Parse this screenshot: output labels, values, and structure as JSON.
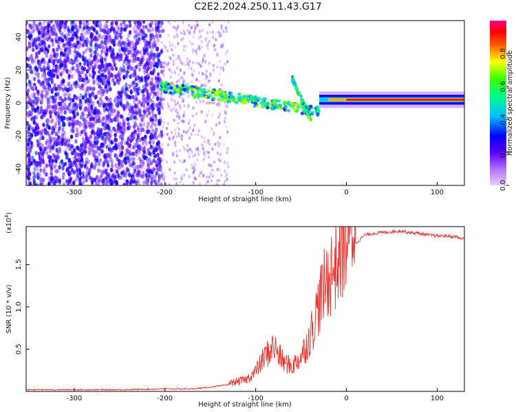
{
  "title": "C2E2.2024.250.11.43.G17",
  "chart_data": [
    {
      "type": "heatmap",
      "xlabel": "Height of straight line (km)",
      "ylabel": "Frequency (Hz)",
      "xlim": [
        -353,
        130
      ],
      "ylim": [
        -50,
        50
      ],
      "xticks": [
        "-300",
        "-200",
        "-100",
        "0",
        "100"
      ],
      "yticks": [
        "-40",
        "-20",
        "0",
        "20",
        "40"
      ],
      "colorbar": {
        "label": "Normalized spectral amplitude",
        "range": [
          0,
          1
        ],
        "ticks": [
          "0.0",
          "0.2",
          "0.4",
          "0.6",
          "0.8"
        ],
        "colormap": [
          "#e6c8f0",
          "#7a00ff",
          "#0000ff",
          "#00d8ff",
          "#00ff60",
          "#ffff00",
          "#ff2000",
          "#ff0080"
        ]
      },
      "bands": [
        {
          "x_start": -353,
          "x_end": -205,
          "description_value": 0.35,
          "spread_hz": 50
        },
        {
          "x_start": -205,
          "x_end": -30,
          "freq_start": 10,
          "freq_end": -5,
          "value": 0.55
        },
        {
          "x_start": -60,
          "x_end": -40,
          "freq_start": 15,
          "freq_end": -12,
          "value": 0.5
        },
        {
          "x_start": -30,
          "x_end": 130,
          "freq_start": 2,
          "freq_end": 2,
          "value": 0.95
        }
      ]
    },
    {
      "type": "line",
      "xlabel": "Height of straight line (km)",
      "ylabel": "SNR (10 * v/v)",
      "exponent": "(x10",
      "exponent_power": "4",
      "exponent_close": ")",
      "xlim": [
        -353,
        130
      ],
      "ylim": [
        0,
        1.95
      ],
      "xticks": [
        "-300",
        "-200",
        "-100",
        "0",
        "100"
      ],
      "yticks": [
        "0.5",
        "1.0",
        "1.5"
      ],
      "color": "#e8302a",
      "series": [
        {
          "x": [
            -353,
            -300,
            -250,
            -200,
            -170,
            -150,
            -130,
            -110,
            -100,
            -90,
            -80,
            -70,
            -60,
            -50,
            -40,
            -30,
            -20,
            -10,
            0,
            10,
            20,
            30,
            40,
            50,
            60,
            70,
            80,
            90,
            100,
            110,
            120,
            130
          ],
          "y": [
            0.02,
            0.02,
            0.02,
            0.03,
            0.03,
            0.05,
            0.08,
            0.12,
            0.2,
            0.35,
            0.45,
            0.3,
            0.25,
            0.35,
            0.55,
            0.9,
            1.15,
            1.3,
            1.55,
            1.75,
            1.85,
            1.87,
            1.88,
            1.89,
            1.9,
            1.88,
            1.87,
            1.85,
            1.84,
            1.84,
            1.83,
            1.8
          ]
        }
      ]
    }
  ]
}
